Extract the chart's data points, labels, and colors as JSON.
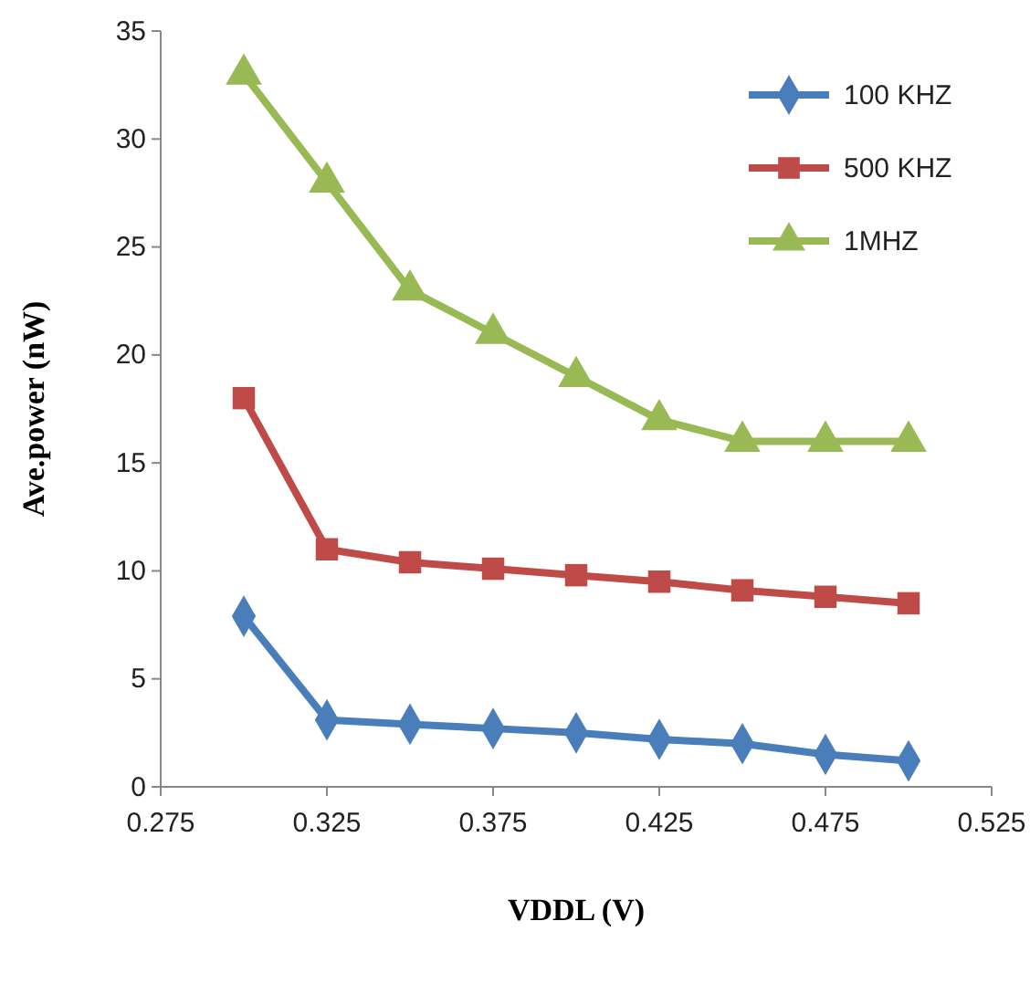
{
  "chart_data": {
    "type": "line",
    "xlabel": "VDDL (V)",
    "ylabel": "Ave.power (nW)",
    "x": [
      0.3,
      0.325,
      0.35,
      0.375,
      0.4,
      0.425,
      0.45,
      0.475,
      0.5
    ],
    "xlim": [
      0.275,
      0.525
    ],
    "xticks": [
      0.275,
      0.325,
      0.375,
      0.425,
      0.475,
      0.525
    ],
    "ylim": [
      0,
      35
    ],
    "yticks": [
      0,
      5,
      10,
      15,
      20,
      25,
      30,
      35
    ],
    "grid": false,
    "legend": "top right",
    "line_style": "solid",
    "series": [
      {
        "name": "100 KHZ",
        "color": "#4a7ebb",
        "marker": "diamond",
        "values": [
          7.9,
          3.1,
          2.9,
          2.7,
          2.5,
          2.2,
          2.0,
          1.5,
          1.2
        ]
      },
      {
        "name": "500 KHZ",
        "color": "#be4b48",
        "marker": "square",
        "values": [
          18,
          11,
          10.4,
          10.1,
          9.8,
          9.5,
          9.1,
          8.8,
          8.5
        ]
      },
      {
        "name": "1MHZ",
        "color": "#98b954",
        "marker": "triangle",
        "values": [
          33,
          28,
          23,
          21,
          19,
          17,
          16,
          16,
          16
        ]
      }
    ]
  }
}
